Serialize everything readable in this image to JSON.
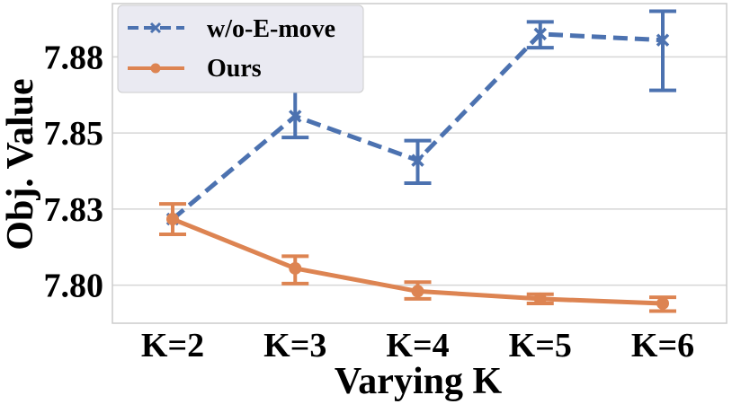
{
  "chart_data": {
    "type": "line",
    "xlabel": "Varying K",
    "ylabel": "Obj. Value",
    "categories": [
      "K=2",
      "K=3",
      "K=4",
      "K=5",
      "K=6"
    ],
    "yticks": [
      7.8,
      7.825,
      7.85,
      7.875
    ],
    "ytick_labels": [
      "7.80",
      "7.83",
      "7.85",
      "7.88"
    ],
    "ylim": [
      7.7875,
      7.8925
    ],
    "grid": true,
    "legend_position": "upper-left",
    "series": [
      {
        "name": "w/o-E-move",
        "color": "#4c72b0",
        "style": "dashed",
        "marker": "x",
        "values": [
          7.8217,
          7.8555,
          7.841,
          7.8825,
          7.8805
        ],
        "error_low": [
          7.8217,
          7.8485,
          7.8335,
          7.878,
          7.864
        ],
        "error_high": [
          7.8217,
          7.864,
          7.8475,
          7.8865,
          7.89
        ]
      },
      {
        "name": "Ours",
        "color": "#dd8452",
        "style": "solid",
        "marker": "o",
        "values": [
          7.8217,
          7.8055,
          7.798,
          7.7955,
          7.794
        ],
        "error_low": [
          7.8167,
          7.8005,
          7.7955,
          7.794,
          7.7915
        ],
        "error_high": [
          7.8267,
          7.8095,
          7.801,
          7.797,
          7.796
        ]
      }
    ]
  }
}
